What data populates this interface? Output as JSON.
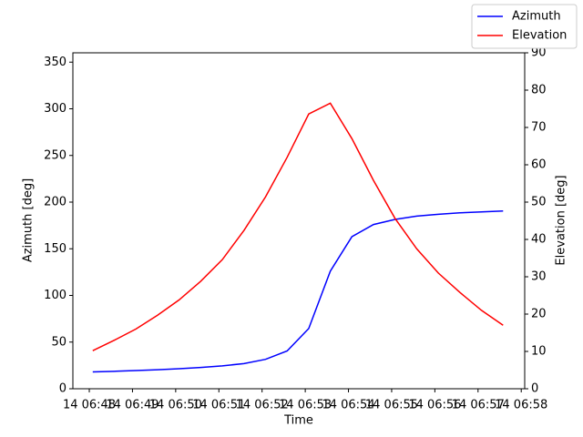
{
  "chart_data": {
    "type": "line",
    "x_label": "Time",
    "y_label": "Azimuth [deg]",
    "y2_label": "Elevation [deg]",
    "x": [
      48.08,
      48.58,
      49.08,
      49.58,
      50.08,
      50.58,
      51.08,
      51.58,
      52.08,
      52.58,
      53.08,
      53.58,
      54.08,
      54.58,
      55.08,
      55.58,
      56.08,
      56.58,
      57.08,
      57.58
    ],
    "series": [
      {
        "name": "Azimuth",
        "color": "#0000ff",
        "axis": "y",
        "values": [
          18,
          18.7,
          19.5,
          20.4,
          21.5,
          22.8,
          24.5,
          27,
          31.5,
          40.5,
          64.5,
          126,
          163,
          176,
          181.5,
          185,
          187,
          188.5,
          189.5,
          190.5
        ]
      },
      {
        "name": "Elevation",
        "color": "#ff0000",
        "axis": "y2",
        "values": [
          10.2,
          13,
          16,
          19.7,
          23.8,
          28.8,
          34.6,
          42.4,
          51.4,
          62,
          73.6,
          76.5,
          67,
          55.8,
          45.6,
          37.5,
          31,
          25.8,
          21,
          17
        ]
      }
    ],
    "xlim": [
      47.62,
      58.08
    ],
    "xticks": [
      {
        "value": 48,
        "label": "14 06:48"
      },
      {
        "value": 49,
        "label": "14 06:49"
      },
      {
        "value": 50,
        "label": "14 06:50"
      },
      {
        "value": 51,
        "label": "14 06:51"
      },
      {
        "value": 52,
        "label": "14 06:52"
      },
      {
        "value": 53,
        "label": "14 06:53"
      },
      {
        "value": 54,
        "label": "14 06:54"
      },
      {
        "value": 55,
        "label": "14 06:55"
      },
      {
        "value": 56,
        "label": "14 06:56"
      },
      {
        "value": 57,
        "label": "14 06:57"
      },
      {
        "value": 58,
        "label": "14 06:58"
      }
    ],
    "ylim": [
      0,
      360
    ],
    "yticks": [
      0,
      50,
      100,
      150,
      200,
      250,
      300,
      350
    ],
    "y2lim": [
      0,
      90
    ],
    "y2ticks": [
      0,
      10,
      20,
      30,
      40,
      50,
      60,
      70,
      80,
      90
    ],
    "legend": "upper right"
  }
}
